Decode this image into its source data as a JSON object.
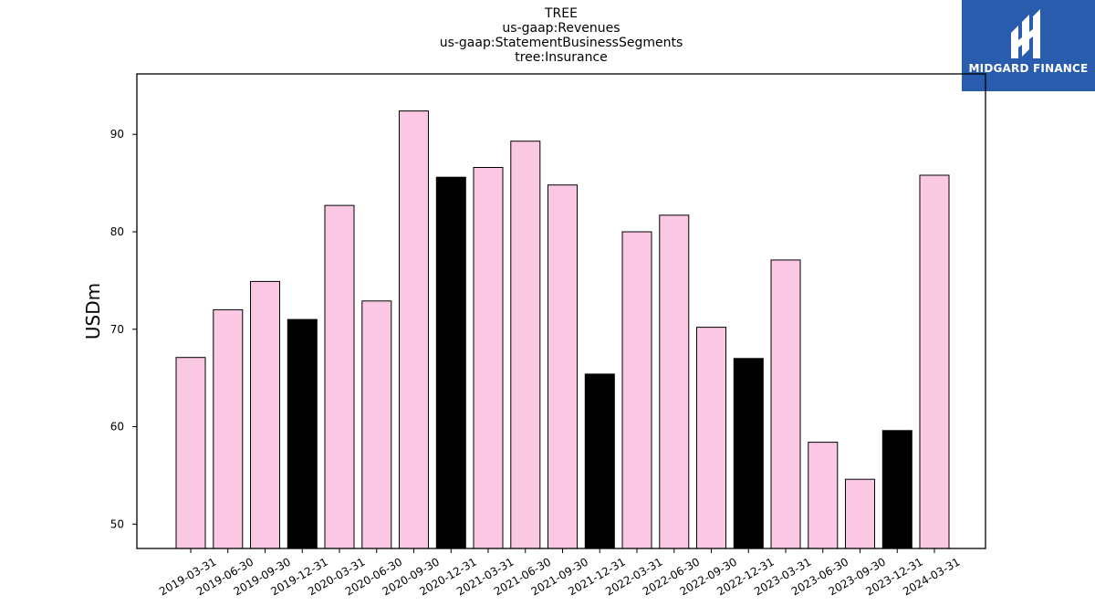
{
  "logo": {
    "text": "MIDGARD FINANCE"
  },
  "chart_data": {
    "type": "bar",
    "title": [
      "TREE",
      "us-gaap:Revenues",
      "us-gaap:StatementBusinessSegments",
      "tree:Insurance"
    ],
    "xlabel": "",
    "ylabel": "USDm",
    "ylim": [
      47.5,
      96.2
    ],
    "yticks": [
      50,
      60,
      70,
      80,
      90
    ],
    "grid": false,
    "colors": {
      "quarter": "#fbc8e3",
      "year_end": "#000000",
      "edge": "#000000"
    },
    "categories": [
      "2019-03-31",
      "2019-06-30",
      "2019-09-30",
      "2019-12-31",
      "2020-03-31",
      "2020-06-30",
      "2020-09-30",
      "2020-12-31",
      "2021-03-31",
      "2021-06-30",
      "2021-09-30",
      "2021-12-31",
      "2022-03-31",
      "2022-06-30",
      "2022-09-30",
      "2022-12-31",
      "2023-03-31",
      "2023-06-30",
      "2023-09-30",
      "2023-12-31",
      "2024-03-31"
    ],
    "values": [
      67.1,
      72.0,
      74.9,
      71.0,
      82.7,
      72.9,
      92.4,
      85.6,
      86.6,
      89.3,
      84.8,
      65.4,
      80.0,
      81.7,
      70.2,
      67.0,
      77.1,
      58.4,
      54.6,
      59.6,
      85.8
    ]
  }
}
